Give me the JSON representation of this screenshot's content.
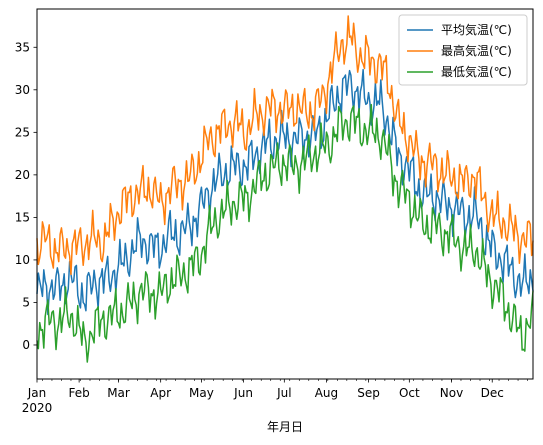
{
  "chart_data": {
    "type": "line",
    "xlabel": "年月日",
    "ylabel": "",
    "year_label": "2020",
    "x_range": [
      "2020-01-01",
      "2020-12-31"
    ],
    "ylim": [
      -4,
      39.5
    ],
    "yticks": [
      0,
      5,
      10,
      15,
      20,
      25,
      30,
      35
    ],
    "xticks": [
      {
        "date": "2020-01-01",
        "label": "Jan"
      },
      {
        "date": "2020-02-01",
        "label": "Feb"
      },
      {
        "date": "2020-03-01",
        "label": "Mar"
      },
      {
        "date": "2020-04-01",
        "label": "Apr"
      },
      {
        "date": "2020-05-01",
        "label": "May"
      },
      {
        "date": "2020-06-01",
        "label": "Jun"
      },
      {
        "date": "2020-07-01",
        "label": "Jul"
      },
      {
        "date": "2020-08-01",
        "label": "Aug"
      },
      {
        "date": "2020-09-01",
        "label": "Sep"
      },
      {
        "date": "2020-10-01",
        "label": "Oct"
      },
      {
        "date": "2020-11-01",
        "label": "Nov"
      },
      {
        "date": "2020-12-01",
        "label": "Dec"
      }
    ],
    "grid": false,
    "legend_position": "top-right",
    "series": [
      {
        "name": "平均気温(℃)",
        "color": "#1f77b4",
        "points": [
          [
            "2020-01-01",
            6.0
          ],
          [
            "2020-01-08",
            7.0
          ],
          [
            "2020-01-15",
            6.5
          ],
          [
            "2020-01-22",
            7.5
          ],
          [
            "2020-01-29",
            7.5
          ],
          [
            "2020-02-05",
            5.5
          ],
          [
            "2020-02-12",
            7.5
          ],
          [
            "2020-02-19",
            7.5
          ],
          [
            "2020-02-26",
            8.5
          ],
          [
            "2020-03-04",
            9.5
          ],
          [
            "2020-03-11",
            11.0
          ],
          [
            "2020-03-18",
            12.5
          ],
          [
            "2020-03-25",
            11.5
          ],
          [
            "2020-04-01",
            11.5
          ],
          [
            "2020-04-08",
            13.0
          ],
          [
            "2020-04-15",
            13.0
          ],
          [
            "2020-04-22",
            14.0
          ],
          [
            "2020-04-29",
            15.5
          ],
          [
            "2020-05-06",
            18.0
          ],
          [
            "2020-05-13",
            19.5
          ],
          [
            "2020-05-20",
            20.5
          ],
          [
            "2020-05-27",
            21.0
          ],
          [
            "2020-06-03",
            21.0
          ],
          [
            "2020-06-10",
            22.5
          ],
          [
            "2020-06-17",
            23.5
          ],
          [
            "2020-06-24",
            24.0
          ],
          [
            "2020-07-01",
            24.5
          ],
          [
            "2020-07-08",
            24.0
          ],
          [
            "2020-07-15",
            24.5
          ],
          [
            "2020-07-22",
            24.5
          ],
          [
            "2020-07-29",
            25.5
          ],
          [
            "2020-08-05",
            28.0
          ],
          [
            "2020-08-12",
            30.0
          ],
          [
            "2020-08-19",
            30.5
          ],
          [
            "2020-08-26",
            29.5
          ],
          [
            "2020-09-02",
            28.5
          ],
          [
            "2020-09-09",
            28.5
          ],
          [
            "2020-09-16",
            26.0
          ],
          [
            "2020-09-23",
            22.0
          ],
          [
            "2020-09-30",
            21.0
          ],
          [
            "2020-10-07",
            18.5
          ],
          [
            "2020-10-14",
            17.5
          ],
          [
            "2020-10-21",
            17.5
          ],
          [
            "2020-10-28",
            16.5
          ],
          [
            "2020-11-04",
            16.0
          ],
          [
            "2020-11-11",
            15.0
          ],
          [
            "2020-11-18",
            15.5
          ],
          [
            "2020-11-25",
            13.0
          ],
          [
            "2020-12-02",
            11.0
          ],
          [
            "2020-12-09",
            10.0
          ],
          [
            "2020-12-16",
            8.5
          ],
          [
            "2020-12-23",
            7.0
          ],
          [
            "2020-12-31",
            8.0
          ]
        ]
      },
      {
        "name": "最高気温(℃)",
        "color": "#ff7f0e",
        "points": [
          [
            "2020-01-01",
            11.5
          ],
          [
            "2020-01-08",
            12.5
          ],
          [
            "2020-01-15",
            11.0
          ],
          [
            "2020-01-22",
            11.5
          ],
          [
            "2020-01-29",
            11.5
          ],
          [
            "2020-02-05",
            12.0
          ],
          [
            "2020-02-12",
            12.5
          ],
          [
            "2020-02-19",
            12.0
          ],
          [
            "2020-02-26",
            14.5
          ],
          [
            "2020-03-04",
            16.5
          ],
          [
            "2020-03-11",
            17.5
          ],
          [
            "2020-03-18",
            18.0
          ],
          [
            "2020-03-25",
            18.5
          ],
          [
            "2020-04-01",
            16.5
          ],
          [
            "2020-04-08",
            18.5
          ],
          [
            "2020-04-15",
            19.0
          ],
          [
            "2020-04-22",
            19.5
          ],
          [
            "2020-04-29",
            21.5
          ],
          [
            "2020-05-06",
            24.0
          ],
          [
            "2020-05-13",
            25.0
          ],
          [
            "2020-05-20",
            26.0
          ],
          [
            "2020-05-27",
            26.0
          ],
          [
            "2020-06-03",
            25.0
          ],
          [
            "2020-06-10",
            27.0
          ],
          [
            "2020-06-17",
            27.5
          ],
          [
            "2020-06-24",
            28.0
          ],
          [
            "2020-07-01",
            27.5
          ],
          [
            "2020-07-08",
            28.0
          ],
          [
            "2020-07-15",
            27.5
          ],
          [
            "2020-07-22",
            27.5
          ],
          [
            "2020-07-29",
            29.0
          ],
          [
            "2020-08-05",
            32.5
          ],
          [
            "2020-08-12",
            35.5
          ],
          [
            "2020-08-19",
            36.0
          ],
          [
            "2020-08-26",
            34.0
          ],
          [
            "2020-09-02",
            33.5
          ],
          [
            "2020-09-09",
            33.0
          ],
          [
            "2020-09-16",
            31.0
          ],
          [
            "2020-09-23",
            26.0
          ],
          [
            "2020-09-30",
            24.5
          ],
          [
            "2020-10-07",
            22.0
          ],
          [
            "2020-10-14",
            21.5
          ],
          [
            "2020-10-21",
            21.0
          ],
          [
            "2020-10-28",
            20.0
          ],
          [
            "2020-11-04",
            19.5
          ],
          [
            "2020-11-11",
            19.0
          ],
          [
            "2020-11-18",
            20.0
          ],
          [
            "2020-11-25",
            17.0
          ],
          [
            "2020-12-02",
            15.0
          ],
          [
            "2020-12-09",
            14.5
          ],
          [
            "2020-12-16",
            13.5
          ],
          [
            "2020-12-23",
            12.5
          ],
          [
            "2020-12-31",
            12.5
          ]
        ]
      },
      {
        "name": "最低気温(℃)",
        "color": "#2ca02c",
        "points": [
          [
            "2020-01-01",
            1.5
          ],
          [
            "2020-01-08",
            3.0
          ],
          [
            "2020-01-15",
            2.5
          ],
          [
            "2020-01-22",
            3.5
          ],
          [
            "2020-01-29",
            3.0
          ],
          [
            "2020-02-05",
            0.0
          ],
          [
            "2020-02-12",
            2.0
          ],
          [
            "2020-02-19",
            3.0
          ],
          [
            "2020-02-26",
            3.5
          ],
          [
            "2020-03-04",
            4.0
          ],
          [
            "2020-03-11",
            5.0
          ],
          [
            "2020-03-18",
            6.5
          ],
          [
            "2020-03-25",
            6.0
          ],
          [
            "2020-04-01",
            6.0
          ],
          [
            "2020-04-08",
            7.5
          ],
          [
            "2020-04-15",
            8.0
          ],
          [
            "2020-04-22",
            9.0
          ],
          [
            "2020-04-29",
            10.0
          ],
          [
            "2020-05-06",
            13.0
          ],
          [
            "2020-05-13",
            15.0
          ],
          [
            "2020-05-20",
            16.0
          ],
          [
            "2020-05-27",
            17.0
          ],
          [
            "2020-06-03",
            17.0
          ],
          [
            "2020-06-10",
            19.0
          ],
          [
            "2020-06-17",
            20.0
          ],
          [
            "2020-06-24",
            21.0
          ],
          [
            "2020-07-01",
            21.5
          ],
          [
            "2020-07-08",
            21.0
          ],
          [
            "2020-07-15",
            21.5
          ],
          [
            "2020-07-22",
            22.5
          ],
          [
            "2020-07-29",
            23.0
          ],
          [
            "2020-08-05",
            24.0
          ],
          [
            "2020-08-12",
            26.0
          ],
          [
            "2020-08-19",
            26.5
          ],
          [
            "2020-08-26",
            25.5
          ],
          [
            "2020-09-02",
            25.0
          ],
          [
            "2020-09-09",
            25.0
          ],
          [
            "2020-09-16",
            22.0
          ],
          [
            "2020-09-23",
            18.5
          ],
          [
            "2020-09-30",
            17.5
          ],
          [
            "2020-10-07",
            15.0
          ],
          [
            "2020-10-14",
            14.0
          ],
          [
            "2020-10-21",
            14.0
          ],
          [
            "2020-10-28",
            13.0
          ],
          [
            "2020-11-04",
            12.5
          ],
          [
            "2020-11-11",
            11.0
          ],
          [
            "2020-11-18",
            11.5
          ],
          [
            "2020-11-25",
            9.0
          ],
          [
            "2020-12-02",
            7.0
          ],
          [
            "2020-12-09",
            5.5
          ],
          [
            "2020-12-16",
            3.0
          ],
          [
            "2020-12-23",
            1.0
          ],
          [
            "2020-12-31",
            3.5
          ]
        ]
      }
    ]
  }
}
